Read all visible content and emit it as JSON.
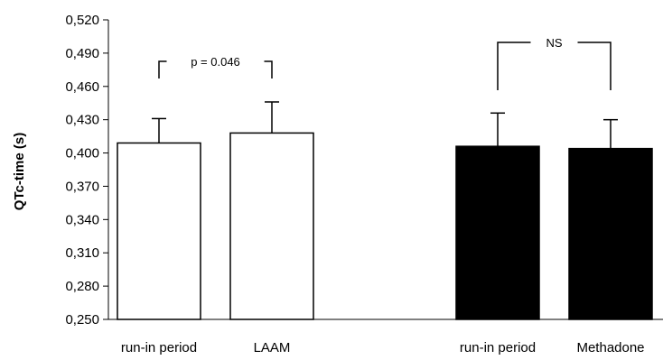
{
  "chart_data": {
    "type": "bar",
    "ylabel": "QTc-time (s)",
    "ylim": [
      0.25,
      0.52
    ],
    "yticks": [
      "0,250",
      "0,280",
      "0,310",
      "0,340",
      "0,370",
      "0,400",
      "0,430",
      "0,460",
      "0,490",
      "0,520"
    ],
    "categories": [
      "run-in period",
      "LAAM",
      "run-in period",
      "Methadone"
    ],
    "values": [
      0.409,
      0.418,
      0.406,
      0.404
    ],
    "error_upper": [
      0.431,
      0.446,
      0.436,
      0.43
    ],
    "bar_fill": [
      "#ffffff",
      "#ffffff",
      "#000000",
      "#000000"
    ],
    "annotations": [
      {
        "text": "p = 0.046",
        "from": 0,
        "to": 1
      },
      {
        "text": "NS",
        "from": 2,
        "to": 3
      }
    ],
    "grid": false
  }
}
